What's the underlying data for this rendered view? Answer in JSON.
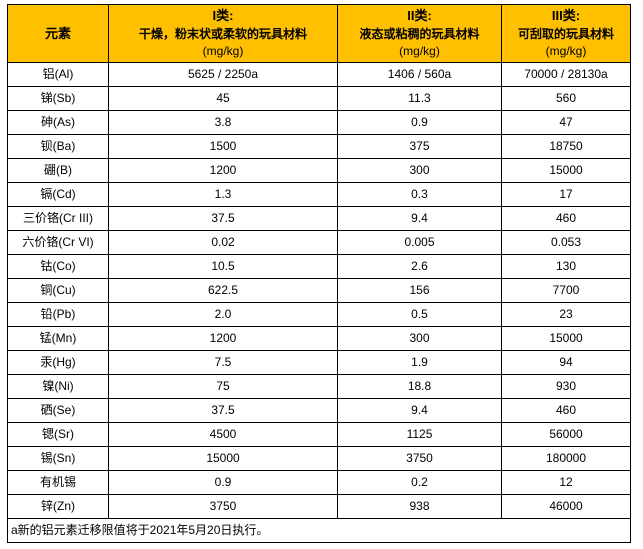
{
  "colors": {
    "header_bg": "#FFC000",
    "border": "#000000",
    "text": "#000000",
    "page_bg": "#FFFFFF"
  },
  "table": {
    "columns": [
      {
        "title": "元素",
        "desc": "",
        "unit": ""
      },
      {
        "title": "I类:",
        "desc": "干燥，粉末状或柔软的玩具材料",
        "unit": "(mg/kg)"
      },
      {
        "title": "II类:",
        "desc": "液态或粘稠的玩具材料",
        "unit": "(mg/kg)"
      },
      {
        "title": "III类:",
        "desc": "可刮取的玩具材料",
        "unit": "(mg/kg)"
      }
    ],
    "rows": [
      {
        "element": "铝(Al)",
        "values": [
          "5625 / 2250a",
          "1406 / 560a",
          "70000 / 28130a"
        ]
      },
      {
        "element": "锑(Sb)",
        "values": [
          "45",
          "11.3",
          "560"
        ]
      },
      {
        "element": "砷(As)",
        "values": [
          "3.8",
          "0.9",
          "47"
        ]
      },
      {
        "element": "钡(Ba)",
        "values": [
          "1500",
          "375",
          "18750"
        ]
      },
      {
        "element": "硼(B)",
        "values": [
          "1200",
          "300",
          "15000"
        ]
      },
      {
        "element": "镉(Cd)",
        "values": [
          "1.3",
          "0.3",
          "17"
        ]
      },
      {
        "element": "三价铬(Cr III)",
        "values": [
          "37.5",
          "9.4",
          "460"
        ]
      },
      {
        "element": "六价铬(Cr VI)",
        "values": [
          "0.02",
          "0.005",
          "0.053"
        ]
      },
      {
        "element": "钴(Co)",
        "values": [
          "10.5",
          "2.6",
          "130"
        ]
      },
      {
        "element": "铜(Cu)",
        "values": [
          "622.5",
          "156",
          "7700"
        ]
      },
      {
        "element": "铅(Pb)",
        "values": [
          "2.0",
          "0.5",
          "23"
        ]
      },
      {
        "element": "锰(Mn)",
        "values": [
          "1200",
          "300",
          "15000"
        ]
      },
      {
        "element": "汞(Hg)",
        "values": [
          "7.5",
          "1.9",
          "94"
        ]
      },
      {
        "element": "镍(Ni)",
        "values": [
          "75",
          "18.8",
          "930"
        ]
      },
      {
        "element": "硒(Se)",
        "values": [
          "37.5",
          "9.4",
          "460"
        ]
      },
      {
        "element": "锶(Sr)",
        "values": [
          "4500",
          "1125",
          "56000"
        ]
      },
      {
        "element": "锡(Sn)",
        "values": [
          "15000",
          "3750",
          "180000"
        ]
      },
      {
        "element": "有机锡",
        "values": [
          "0.9",
          "0.2",
          "12"
        ]
      },
      {
        "element": "锌(Zn)",
        "values": [
          "3750",
          "938",
          "46000"
        ]
      }
    ],
    "footnote": "a新的铝元素迁移限值将于2021年5月20日执行。"
  }
}
